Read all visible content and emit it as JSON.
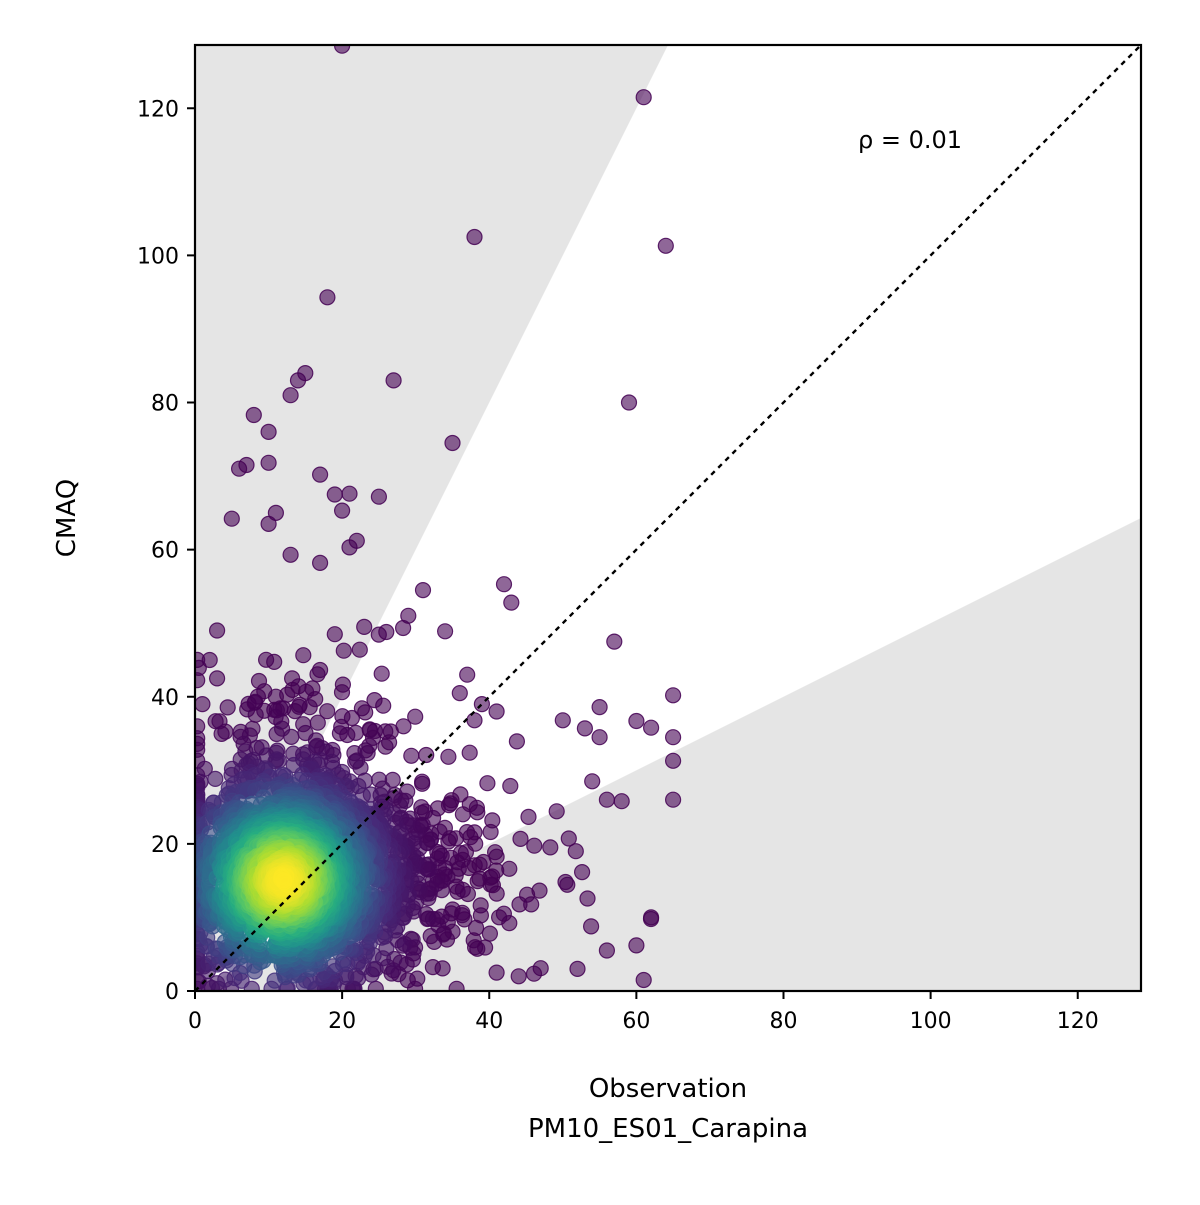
{
  "chart_data": {
    "type": "scatter",
    "xlabel": "Observation",
    "xlabel_sub": "PM10_ES01_Carapina",
    "ylabel": "CMAQ",
    "annotation": "ρ = 0.01",
    "xlim": [
      0,
      128.6
    ],
    "ylim": [
      0,
      128.6
    ],
    "xticks": [
      0,
      20,
      40,
      60,
      80,
      100,
      120
    ],
    "yticks": [
      0,
      20,
      40,
      60,
      80,
      100,
      120
    ],
    "identity_line": true,
    "shaded_regions": "outside factor-of-2 band (y > 2x and y < x/2)",
    "shade_color": "#e5e5e5",
    "colormap": "viridis",
    "outliers": [
      [
        20,
        128.5
      ],
      [
        61,
        121.5
      ],
      [
        38,
        102.5
      ],
      [
        64,
        101.3
      ],
      [
        18,
        94.3
      ],
      [
        27,
        83
      ],
      [
        59,
        80
      ],
      [
        15,
        84
      ],
      [
        14,
        83
      ],
      [
        13,
        81
      ],
      [
        8,
        78.3
      ],
      [
        6,
        71
      ],
      [
        7,
        71.5
      ],
      [
        10,
        71.8
      ],
      [
        10,
        76
      ],
      [
        17,
        70.2
      ],
      [
        35,
        74.5
      ],
      [
        19,
        67.5
      ],
      [
        21,
        67.6
      ],
      [
        25,
        67.2
      ],
      [
        20,
        65.3
      ],
      [
        5,
        64.2
      ],
      [
        11,
        65
      ],
      [
        10,
        63.5
      ],
      [
        22,
        61.2
      ],
      [
        21,
        60.3
      ],
      [
        13,
        59.3
      ],
      [
        17,
        58.2
      ],
      [
        42,
        55.3
      ],
      [
        43,
        52.8
      ],
      [
        31,
        54.5
      ],
      [
        29,
        51
      ],
      [
        57,
        47.5
      ],
      [
        34,
        48.9
      ],
      [
        60,
        36.7
      ],
      [
        62,
        35.8
      ],
      [
        65,
        40.2
      ],
      [
        65,
        34.5
      ],
      [
        55,
        38.6
      ],
      [
        53,
        35.7
      ],
      [
        55,
        34.5
      ],
      [
        50,
        36.8
      ],
      [
        54,
        28.5
      ],
      [
        56,
        26
      ],
      [
        58,
        25.8
      ],
      [
        65,
        26
      ],
      [
        65,
        31.3
      ],
      [
        61,
        1.5
      ],
      [
        52,
        3
      ],
      [
        56,
        5.5
      ],
      [
        60,
        6.2
      ],
      [
        62,
        10
      ],
      [
        47,
        3.1
      ],
      [
        44,
        2
      ],
      [
        41,
        2.5
      ],
      [
        38,
        36.8
      ],
      [
        39,
        39
      ],
      [
        36,
        40.5
      ],
      [
        37,
        43
      ],
      [
        41,
        38
      ],
      [
        26,
        48.8
      ],
      [
        23,
        49.5
      ],
      [
        19,
        48.5
      ],
      [
        3,
        49
      ],
      [
        3,
        42.5
      ],
      [
        2,
        45
      ],
      [
        1,
        39
      ]
    ],
    "n_points": 2600
  }
}
